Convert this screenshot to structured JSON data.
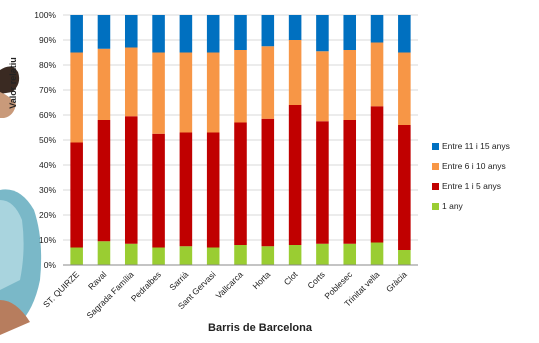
{
  "chart_data": {
    "type": "bar",
    "stacked": true,
    "xlabel": "Barris de Barcelona",
    "ylabel": "Valor relatiu",
    "ylim": [
      0,
      100
    ],
    "yticks": [
      "0%",
      "10%",
      "20%",
      "30%",
      "40%",
      "50%",
      "60%",
      "70%",
      "80%",
      "90%",
      "100%"
    ],
    "grid": true,
    "legend_position": "right",
    "categories": [
      "ST. QUIRZE",
      "Raval",
      "Sagrada Família",
      "Pedralbes",
      "Sarrià",
      "Sant Gervasi",
      "Vallcarca",
      "Horta",
      "Clot",
      "Corts",
      "Poblesec",
      "Trinitat vella",
      "Gràcia"
    ],
    "series": [
      {
        "name": "1 any",
        "color": "#9acd32",
        "values": [
          7,
          9.5,
          8.5,
          7,
          7.5,
          7,
          8,
          7.5,
          8,
          8.5,
          8.5,
          9,
          6
        ]
      },
      {
        "name": "Entre 1 i 5 anys",
        "color": "#c00000",
        "values": [
          42,
          48.5,
          51,
          45.5,
          45.5,
          46,
          49,
          51,
          56,
          49,
          49.5,
          54.5,
          50
        ]
      },
      {
        "name": "Entre 6 i 10 anys",
        "color": "#f79646",
        "values": [
          36,
          28.5,
          27.5,
          32.5,
          32,
          32,
          29,
          29,
          26,
          28,
          28,
          25.5,
          29
        ]
      },
      {
        "name": "Entre 11 i 15 anys",
        "color": "#0070c0",
        "values": [
          15,
          13.5,
          13,
          15,
          15,
          15,
          14,
          12.5,
          10,
          14.5,
          14,
          11,
          15
        ]
      }
    ]
  }
}
